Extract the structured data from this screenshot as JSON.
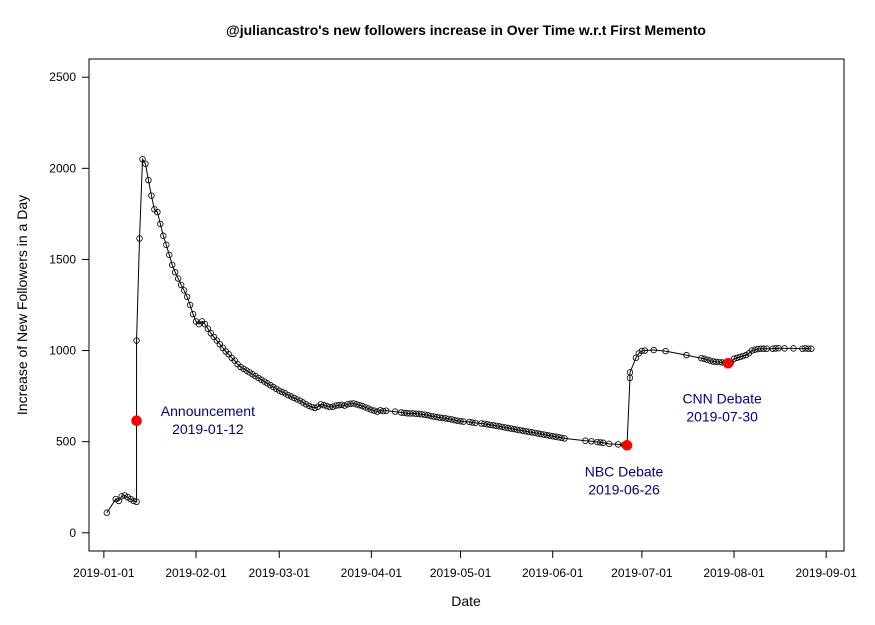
{
  "chart_data": {
    "type": "scatter",
    "title": "@juliancastro's new followers increase in Over Time w.r.t First Memento",
    "xlabel": "Date",
    "ylabel": "Increase of New Followers in a Day",
    "xlim": [
      "2018-12-27",
      "2019-09-07"
    ],
    "ylim": [
      -100,
      2600
    ],
    "grid": false,
    "legend": "none",
    "x_ticks": [
      "2019-01-01",
      "2019-02-01",
      "2019-03-01",
      "2019-04-01",
      "2019-05-01",
      "2019-06-01",
      "2019-07-01",
      "2019-08-01",
      "2019-09-01"
    ],
    "y_ticks": [
      0,
      500,
      1000,
      1500,
      2000,
      2500
    ],
    "colors": {
      "line": "#000000",
      "point": "#000000",
      "highlight": "#ff0000",
      "annotation": "#00008b"
    },
    "series": [
      {
        "marker": "open-circle",
        "line": true,
        "points": [
          [
            "2019-01-02",
            110
          ],
          [
            "2019-01-05",
            185
          ],
          [
            "2019-01-06",
            175
          ],
          [
            "2019-01-07",
            200
          ],
          [
            "2019-01-08",
            205
          ],
          [
            "2019-01-09",
            195
          ],
          [
            "2019-01-10",
            185
          ],
          [
            "2019-01-11",
            175
          ],
          [
            "2019-01-12",
            170
          ],
          [
            "2019-01-12",
            1055
          ],
          [
            "2019-01-13",
            1615
          ],
          [
            "2019-01-14",
            2050
          ],
          [
            "2019-01-15",
            2025
          ],
          [
            "2019-01-16",
            1935
          ],
          [
            "2019-01-17",
            1850
          ],
          [
            "2019-01-18",
            1775
          ],
          [
            "2019-01-19",
            1760
          ],
          [
            "2019-01-20",
            1695
          ],
          [
            "2019-01-21",
            1630
          ],
          [
            "2019-01-22",
            1580
          ],
          [
            "2019-01-23",
            1525
          ],
          [
            "2019-01-24",
            1470
          ],
          [
            "2019-01-25",
            1430
          ],
          [
            "2019-01-26",
            1395
          ],
          [
            "2019-01-27",
            1360
          ],
          [
            "2019-01-28",
            1330
          ],
          [
            "2019-01-29",
            1295
          ],
          [
            "2019-01-30",
            1250
          ],
          [
            "2019-01-31",
            1200
          ],
          [
            "2019-02-01",
            1160
          ],
          [
            "2019-02-02",
            1145
          ],
          [
            "2019-02-03",
            1160
          ],
          [
            "2019-02-04",
            1145
          ],
          [
            "2019-02-05",
            1120
          ],
          [
            "2019-02-06",
            1095
          ],
          [
            "2019-02-07",
            1075
          ],
          [
            "2019-02-08",
            1055
          ],
          [
            "2019-02-09",
            1035
          ],
          [
            "2019-02-10",
            1015
          ],
          [
            "2019-02-11",
            995
          ],
          [
            "2019-02-12",
            980
          ],
          [
            "2019-02-13",
            960
          ],
          [
            "2019-02-14",
            945
          ],
          [
            "2019-02-15",
            925
          ],
          [
            "2019-02-16",
            910
          ],
          [
            "2019-02-17",
            900
          ],
          [
            "2019-02-18",
            890
          ],
          [
            "2019-02-19",
            880
          ],
          [
            "2019-02-20",
            870
          ],
          [
            "2019-02-21",
            860
          ],
          [
            "2019-02-22",
            850
          ],
          [
            "2019-02-23",
            840
          ],
          [
            "2019-02-24",
            830
          ],
          [
            "2019-02-25",
            820
          ],
          [
            "2019-02-26",
            810
          ],
          [
            "2019-02-27",
            800
          ],
          [
            "2019-02-28",
            790
          ],
          [
            "2019-03-01",
            780
          ],
          [
            "2019-03-02",
            772
          ],
          [
            "2019-03-03",
            765
          ],
          [
            "2019-03-04",
            755
          ],
          [
            "2019-03-05",
            748
          ],
          [
            "2019-03-06",
            740
          ],
          [
            "2019-03-07",
            732
          ],
          [
            "2019-03-08",
            725
          ],
          [
            "2019-03-09",
            715
          ],
          [
            "2019-03-10",
            705
          ],
          [
            "2019-03-11",
            697
          ],
          [
            "2019-03-12",
            690
          ],
          [
            "2019-03-13",
            685
          ],
          [
            "2019-03-14",
            692
          ],
          [
            "2019-03-15",
            705
          ],
          [
            "2019-03-16",
            700
          ],
          [
            "2019-03-17",
            695
          ],
          [
            "2019-03-18",
            690
          ],
          [
            "2019-03-19",
            692
          ],
          [
            "2019-03-20",
            698
          ],
          [
            "2019-03-21",
            700
          ],
          [
            "2019-03-22",
            702
          ],
          [
            "2019-03-23",
            698
          ],
          [
            "2019-03-24",
            705
          ],
          [
            "2019-03-25",
            708
          ],
          [
            "2019-03-26",
            710
          ],
          [
            "2019-03-27",
            705
          ],
          [
            "2019-03-28",
            700
          ],
          [
            "2019-03-29",
            695
          ],
          [
            "2019-03-30",
            688
          ],
          [
            "2019-03-31",
            682
          ],
          [
            "2019-04-01",
            675
          ],
          [
            "2019-04-02",
            670
          ],
          [
            "2019-04-03",
            665
          ],
          [
            "2019-04-04",
            672
          ],
          [
            "2019-04-05",
            668
          ],
          [
            "2019-04-06",
            670
          ],
          [
            "2019-04-09",
            665
          ],
          [
            "2019-04-11",
            660
          ],
          [
            "2019-04-12",
            658
          ],
          [
            "2019-04-13",
            656
          ],
          [
            "2019-04-14",
            655
          ],
          [
            "2019-04-15",
            655
          ],
          [
            "2019-04-16",
            653
          ],
          [
            "2019-04-17",
            652
          ],
          [
            "2019-04-18",
            650
          ],
          [
            "2019-04-19",
            648
          ],
          [
            "2019-04-20",
            645
          ],
          [
            "2019-04-21",
            640
          ],
          [
            "2019-04-22",
            638
          ],
          [
            "2019-04-23",
            635
          ],
          [
            "2019-04-24",
            632
          ],
          [
            "2019-04-25",
            630
          ],
          [
            "2019-04-26",
            628
          ],
          [
            "2019-04-27",
            625
          ],
          [
            "2019-04-28",
            622
          ],
          [
            "2019-04-29",
            618
          ],
          [
            "2019-04-30",
            615
          ],
          [
            "2019-05-01",
            612
          ],
          [
            "2019-05-02",
            610
          ],
          [
            "2019-05-04",
            608
          ],
          [
            "2019-05-05",
            605
          ],
          [
            "2019-05-06",
            603
          ],
          [
            "2019-05-08",
            600
          ],
          [
            "2019-05-09",
            598
          ],
          [
            "2019-05-10",
            595
          ],
          [
            "2019-05-11",
            592
          ],
          [
            "2019-05-12",
            590
          ],
          [
            "2019-05-13",
            587
          ],
          [
            "2019-05-14",
            584
          ],
          [
            "2019-05-15",
            581
          ],
          [
            "2019-05-16",
            578
          ],
          [
            "2019-05-17",
            575
          ],
          [
            "2019-05-18",
            572
          ],
          [
            "2019-05-19",
            569
          ],
          [
            "2019-05-20",
            566
          ],
          [
            "2019-05-21",
            563
          ],
          [
            "2019-05-22",
            560
          ],
          [
            "2019-05-23",
            557
          ],
          [
            "2019-05-24",
            554
          ],
          [
            "2019-05-25",
            551
          ],
          [
            "2019-05-26",
            548
          ],
          [
            "2019-05-27",
            545
          ],
          [
            "2019-05-28",
            542
          ],
          [
            "2019-05-29",
            539
          ],
          [
            "2019-05-30",
            536
          ],
          [
            "2019-05-31",
            533
          ],
          [
            "2019-06-01",
            530
          ],
          [
            "2019-06-02",
            527
          ],
          [
            "2019-06-03",
            524
          ],
          [
            "2019-06-04",
            521
          ],
          [
            "2019-06-05",
            518
          ],
          [
            "2019-06-12",
            505
          ],
          [
            "2019-06-14",
            502
          ],
          [
            "2019-06-16",
            498
          ],
          [
            "2019-06-17",
            496
          ],
          [
            "2019-06-18",
            494
          ],
          [
            "2019-06-20",
            488
          ],
          [
            "2019-06-23",
            485
          ],
          [
            "2019-06-25",
            482
          ],
          [
            "2019-06-26",
            480
          ],
          [
            "2019-06-27",
            850
          ],
          [
            "2019-06-27",
            880
          ],
          [
            "2019-06-29",
            960
          ],
          [
            "2019-06-30",
            985
          ],
          [
            "2019-07-01",
            998
          ],
          [
            "2019-07-02",
            1000
          ],
          [
            "2019-07-05",
            1003
          ],
          [
            "2019-07-09",
            997
          ],
          [
            "2019-07-16",
            975
          ],
          [
            "2019-07-21",
            958
          ],
          [
            "2019-07-22",
            955
          ],
          [
            "2019-07-23",
            950
          ],
          [
            "2019-07-24",
            945
          ],
          [
            "2019-07-25",
            940
          ],
          [
            "2019-07-26",
            938
          ],
          [
            "2019-07-27",
            937
          ],
          [
            "2019-07-28",
            935
          ],
          [
            "2019-07-29",
            933
          ],
          [
            "2019-07-30",
            930
          ],
          [
            "2019-07-31",
            935
          ],
          [
            "2019-08-01",
            955
          ],
          [
            "2019-08-02",
            960
          ],
          [
            "2019-08-03",
            965
          ],
          [
            "2019-08-04",
            970
          ],
          [
            "2019-08-05",
            975
          ],
          [
            "2019-08-06",
            985
          ],
          [
            "2019-08-07",
            1000
          ],
          [
            "2019-08-08",
            1005
          ],
          [
            "2019-08-09",
            1008
          ],
          [
            "2019-08-10",
            1010
          ],
          [
            "2019-08-11",
            1010
          ],
          [
            "2019-08-12",
            1010
          ],
          [
            "2019-08-14",
            1010
          ],
          [
            "2019-08-15",
            1012
          ],
          [
            "2019-08-16",
            1013
          ],
          [
            "2019-08-18",
            1012
          ],
          [
            "2019-08-21",
            1012
          ],
          [
            "2019-08-24",
            1010
          ],
          [
            "2019-08-25",
            1012
          ],
          [
            "2019-08-26",
            1010
          ],
          [
            "2019-08-27",
            1010
          ]
        ]
      }
    ],
    "highlights": [
      {
        "date": "2019-01-12",
        "value": 615
      },
      {
        "date": "2019-06-26",
        "value": 480
      },
      {
        "date": "2019-07-30",
        "value": 930
      }
    ],
    "annotations": [
      {
        "lines": [
          "Announcement",
          "2019-01-12"
        ],
        "anchor_date": "2019-02-05",
        "anchor_value": 640
      },
      {
        "lines": [
          "NBC Debate",
          "2019-06-26"
        ],
        "anchor_date": "2019-06-25",
        "anchor_value": 310
      },
      {
        "lines": [
          "CNN Debate",
          "2019-07-30"
        ],
        "anchor_date": "2019-07-28",
        "anchor_value": 710
      }
    ]
  }
}
